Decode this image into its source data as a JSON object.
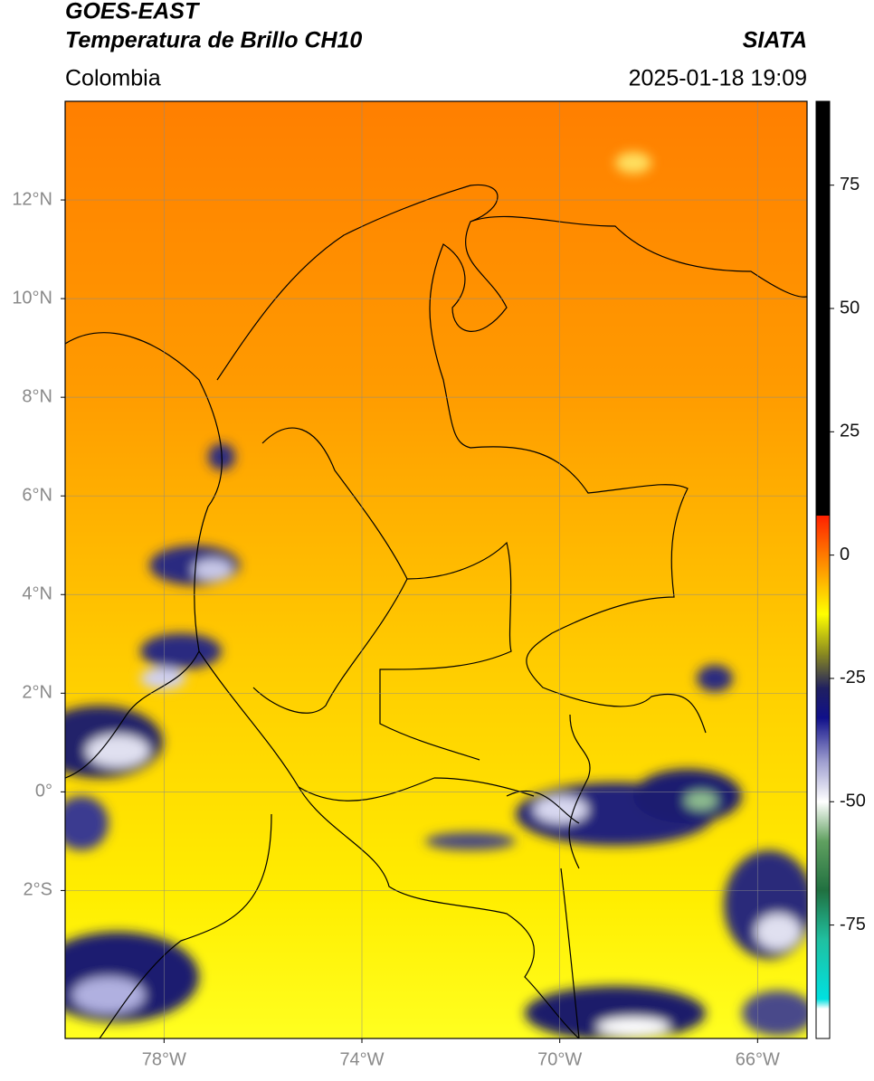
{
  "header": {
    "title": "GOES-EAST",
    "subtitle": "Temperatura de Brillo CH10",
    "source": "SIATA",
    "region": "Colombia",
    "datetime": "2025-01-18 19:09"
  },
  "map": {
    "xlim": [
      -80,
      -65
    ],
    "ylim": [
      -5,
      14
    ],
    "grid": true,
    "xticks": [
      {
        "value": -78,
        "label": "78°W"
      },
      {
        "value": -74,
        "label": "74°W"
      },
      {
        "value": -70,
        "label": "70°W"
      },
      {
        "value": -66,
        "label": "66°W"
      }
    ],
    "yticks": [
      {
        "value": 12,
        "label": "12°N"
      },
      {
        "value": 10,
        "label": "10°N"
      },
      {
        "value": 8,
        "label": "8°N"
      },
      {
        "value": 6,
        "label": "6°N"
      },
      {
        "value": 4,
        "label": "4°N"
      },
      {
        "value": 2,
        "label": "2°N"
      },
      {
        "value": 0,
        "label": "0°"
      },
      {
        "value": -2,
        "label": "2°S"
      }
    ]
  },
  "colorbar": {
    "lim": [
      -98,
      92
    ],
    "ticks": [
      75,
      50,
      25,
      0,
      -25,
      -50,
      -75
    ],
    "stops": [
      {
        "value": 92,
        "color": "#000000"
      },
      {
        "value": 8,
        "color": "#000000"
      },
      {
        "value": 8,
        "color": "#ff2000"
      },
      {
        "value": 0,
        "color": "#ff7a00"
      },
      {
        "value": -12,
        "color": "#ffff00"
      },
      {
        "value": -20,
        "color": "#8a8a20"
      },
      {
        "value": -27,
        "color": "#202060"
      },
      {
        "value": -33,
        "color": "#10108a"
      },
      {
        "value": -42,
        "color": "#a0a0d0"
      },
      {
        "value": -50,
        "color": "#ffffff"
      },
      {
        "value": -58,
        "color": "#60a060"
      },
      {
        "value": -68,
        "color": "#207040"
      },
      {
        "value": -78,
        "color": "#20c0a0"
      },
      {
        "value": -90,
        "color": "#00e0e0"
      },
      {
        "value": -92,
        "color": "#ffffff"
      },
      {
        "value": -98,
        "color": "#ffffff"
      }
    ]
  }
}
